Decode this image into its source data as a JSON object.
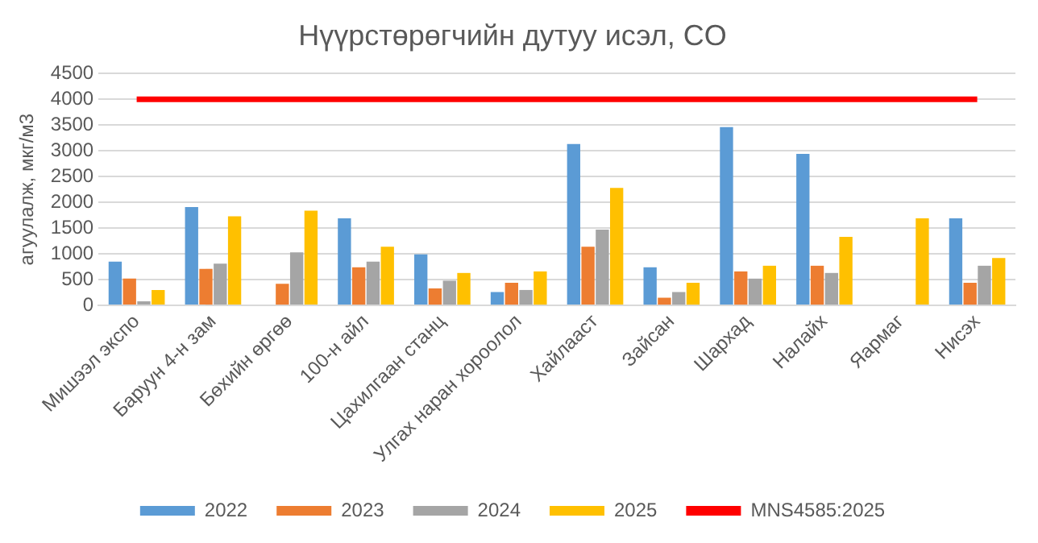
{
  "chart_data": {
    "type": "bar",
    "title": "Нүүрстөрөгчийн дутуу исэл, CO",
    "ylabel": "агуулалж, мкг/м3",
    "categories": [
      "Мишээл экспо",
      "Баруун 4-н зам",
      "Бөхийн өргөө",
      "100-н айл",
      "Цахилгаан станц",
      "Улгах наран хороолол",
      "Хайлааст",
      "Зайсан",
      "Шархад",
      "Налайх",
      "Яармаг",
      "Нисэх"
    ],
    "series": [
      {
        "name": "2022",
        "color": "#5b9bd5",
        "values": [
          850,
          1910,
          null,
          1690,
          990,
          260,
          3130,
          740,
          3460,
          2940,
          null,
          1690
        ]
      },
      {
        "name": "2023",
        "color": "#ed7d31",
        "values": [
          520,
          710,
          420,
          740,
          330,
          440,
          1140,
          150,
          660,
          770,
          null,
          440
        ]
      },
      {
        "name": "2024",
        "color": "#a5a5a5",
        "values": [
          80,
          810,
          1030,
          850,
          480,
          300,
          1470,
          260,
          520,
          630,
          null,
          770
        ]
      },
      {
        "name": "2025",
        "color": "#ffc000",
        "values": [
          300,
          1730,
          1840,
          1140,
          630,
          660,
          2280,
          440,
          770,
          1330,
          1690,
          920
        ]
      },
      {
        "name": "MNS4585:2025",
        "type": "line",
        "color": "#ff0000",
        "values": [
          4000,
          4000,
          4000,
          4000,
          4000,
          4000,
          4000,
          4000,
          4000,
          4000,
          4000,
          4000
        ]
      }
    ],
    "ylim": [
      0,
      4500
    ],
    "yticks": [
      0,
      500,
      1000,
      1500,
      2000,
      2500,
      3000,
      3500,
      4000,
      4500
    ],
    "grid": "y",
    "legend": "bottom",
    "marker": "none"
  }
}
